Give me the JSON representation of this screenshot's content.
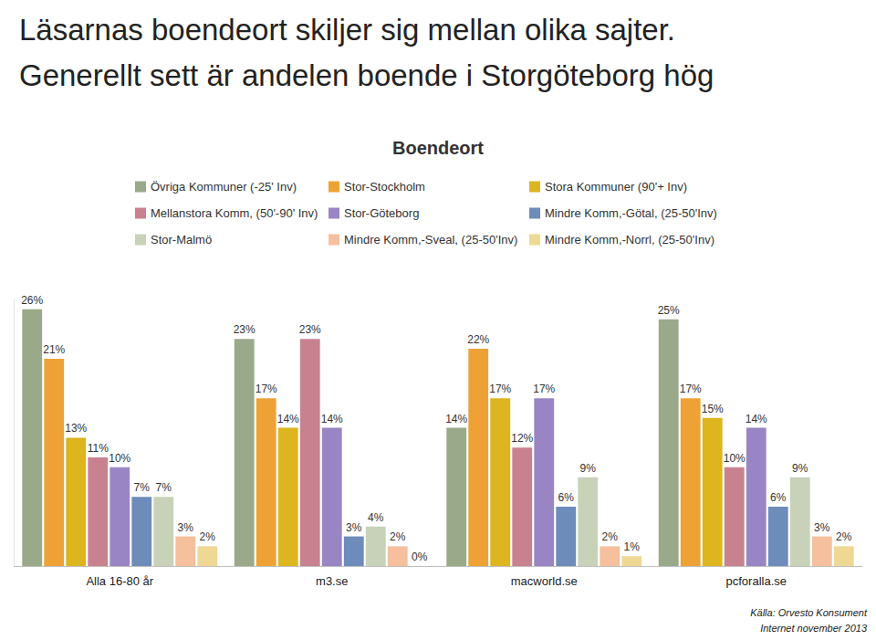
{
  "chart_data": {
    "type": "bar",
    "title": "Läsarnas boendeort skiljer sig mellan olika sajter.\nGenerellt sett är andelen boende i Storgöteborg hög",
    "subtitle": "Boendeort",
    "categories": [
      "Alla 16-80 år",
      "m3.se",
      "macworld.se",
      "pcforalla.se"
    ],
    "series": [
      {
        "name": "Övriga Kommuner (-25' Inv)",
        "color": "#9aa98a",
        "values": [
          26,
          23,
          14,
          25
        ],
        "value_labels": [
          "26%",
          "23%",
          "14%",
          "25%"
        ]
      },
      {
        "name": "Stor-Stockholm",
        "color": "#eea235",
        "values": [
          21,
          17,
          22,
          17
        ],
        "value_labels": [
          "21%",
          "17%",
          "22%",
          "17%"
        ]
      },
      {
        "name": "Stora Kommuner (90'+ Inv)",
        "color": "#dcb51f",
        "values": [
          13,
          14,
          17,
          15
        ],
        "value_labels": [
          "13%",
          "14%",
          "17%",
          "15%"
        ]
      },
      {
        "name": "Mellanstora Komm, (50'-90' Inv)",
        "color": "#c8828f",
        "values": [
          11,
          23,
          12,
          10
        ],
        "value_labels": [
          "11%",
          "23%",
          "12%",
          "10%"
        ]
      },
      {
        "name": "Stor-Göteborg",
        "color": "#9985c3",
        "values": [
          10,
          14,
          17,
          14
        ],
        "value_labels": [
          "10%",
          "14%",
          "17%",
          "14%"
        ]
      },
      {
        "name": "Mindre Komm,-Götal, (25-50'Inv)",
        "color": "#6d8cb9",
        "values": [
          7,
          3,
          6,
          6
        ],
        "value_labels": [
          "7%",
          "3%",
          "6%",
          "6%"
        ]
      },
      {
        "name": "Stor-Malmö",
        "color": "#c7d2b8",
        "values": [
          7,
          4,
          9,
          9
        ],
        "value_labels": [
          "7%",
          "4%",
          "9%",
          "9%"
        ]
      },
      {
        "name": "Mindre Komm,-Sveal, (25-50'Inv)",
        "color": "#f6bf9e",
        "values": [
          3,
          2,
          2,
          3
        ],
        "value_labels": [
          "3%",
          "2%",
          "2%",
          "3%"
        ]
      },
      {
        "name": "Mindre Komm,-Norrl, (25-50'Inv)",
        "color": "#efd894",
        "values": [
          2,
          0,
          1,
          2
        ],
        "value_labels": [
          "2%",
          "0%",
          "1%",
          "2%"
        ]
      }
    ],
    "ylim": [
      0,
      27
    ],
    "grid": false,
    "data_labels": true,
    "tick_labels": "x",
    "annotations": [
      "Källa: Orvesto Konsument",
      "Internet november 2013"
    ]
  }
}
